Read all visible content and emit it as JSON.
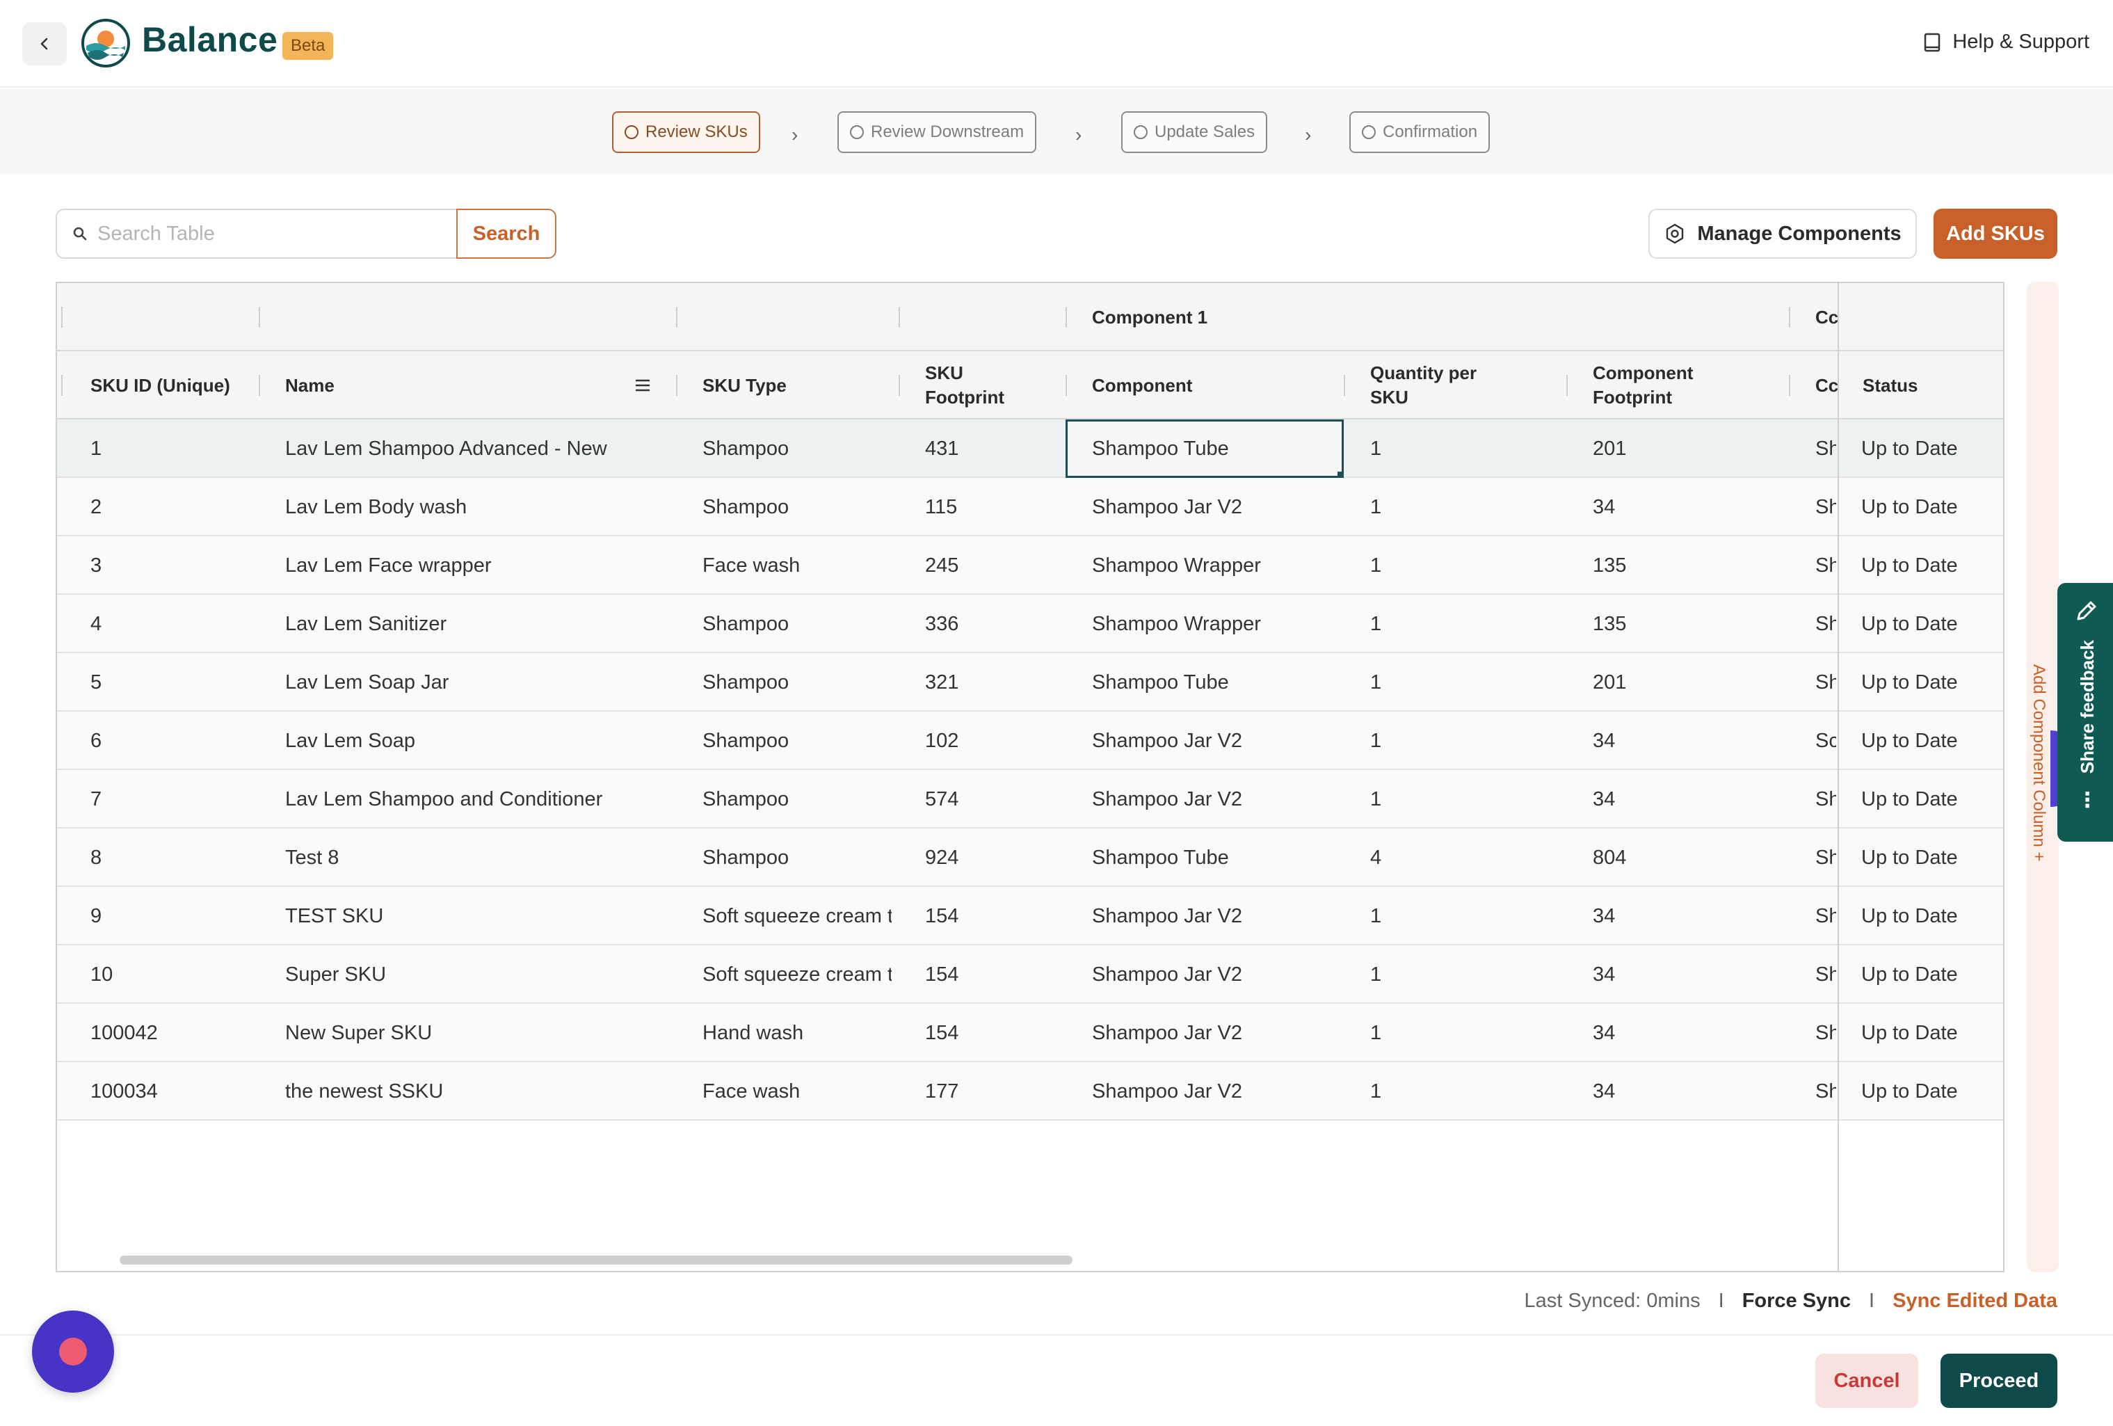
{
  "header": {
    "brand": "Balance",
    "badge": "Beta",
    "help_label": "Help & Support"
  },
  "stepper": {
    "steps": [
      {
        "label": "Review SKUs",
        "active": true
      },
      {
        "label": "Review Downstream",
        "active": false
      },
      {
        "label": "Update Sales",
        "active": false
      },
      {
        "label": "Confirmation",
        "active": false
      }
    ]
  },
  "toolbar": {
    "search_placeholder": "Search Table",
    "search_label": "Search",
    "manage_label": "Manage Components",
    "add_label": "Add SKUs"
  },
  "table": {
    "group_header": "Component 1",
    "group_header_2": "Cc",
    "columns": {
      "sku_id": "SKU ID (Unique)",
      "name": "Name",
      "sku_type": "SKU Type",
      "sku_footprint": "SKU Footprint",
      "component": "Component",
      "qty": "Quantity per SKU",
      "comp_footprint": "Component Footprint",
      "next": "Cc",
      "status": "Status"
    },
    "rows": [
      {
        "id": "1",
        "name": "Lav Lem Shampoo Advanced - New",
        "type": "Shampoo",
        "footprint": "431",
        "component": "Shampoo Tube",
        "qty": "1",
        "comp_fp": "201",
        "next": "Sh",
        "status": "Up to Date"
      },
      {
        "id": "2",
        "name": "Lav Lem Body wash",
        "type": "Shampoo",
        "footprint": "115",
        "component": "Shampoo Jar V2",
        "qty": "1",
        "comp_fp": "34",
        "next": "Sh",
        "status": "Up to Date"
      },
      {
        "id": "3",
        "name": "Lav Lem Face wrapper",
        "type": "Face wash",
        "footprint": "245",
        "component": "Shampoo Wrapper",
        "qty": "1",
        "comp_fp": "135",
        "next": "Sh",
        "status": "Up to Date"
      },
      {
        "id": "4",
        "name": "Lav Lem Sanitizer",
        "type": "Shampoo",
        "footprint": "336",
        "component": "Shampoo Wrapper",
        "qty": "1",
        "comp_fp": "135",
        "next": "Sh",
        "status": "Up to Date"
      },
      {
        "id": "5",
        "name": "Lav Lem Soap Jar",
        "type": "Shampoo",
        "footprint": "321",
        "component": "Shampoo Tube",
        "qty": "1",
        "comp_fp": "201",
        "next": "Sh",
        "status": "Up to Date"
      },
      {
        "id": "6",
        "name": "Lav Lem Soap",
        "type": "Shampoo",
        "footprint": "102",
        "component": "Shampoo Jar V2",
        "qty": "1",
        "comp_fp": "34",
        "next": "Sc",
        "status": "Up to Date"
      },
      {
        "id": "7",
        "name": "Lav Lem Shampoo and Conditioner",
        "type": "Shampoo",
        "footprint": "574",
        "component": "Shampoo Jar V2",
        "qty": "1",
        "comp_fp": "34",
        "next": "Sh",
        "status": "Up to Date"
      },
      {
        "id": "8",
        "name": "Test 8",
        "type": "Shampoo",
        "footprint": "924",
        "component": "Shampoo Tube",
        "qty": "4",
        "comp_fp": "804",
        "next": "Sh",
        "status": "Up to Date"
      },
      {
        "id": "9",
        "name": "TEST SKU",
        "type": "Soft squeeze cream tube",
        "footprint": "154",
        "component": "Shampoo Jar V2",
        "qty": "1",
        "comp_fp": "34",
        "next": "Sh",
        "status": "Up to Date"
      },
      {
        "id": "10",
        "name": "Super SKU",
        "type": "Soft squeeze cream tube",
        "footprint": "154",
        "component": "Shampoo Jar V2",
        "qty": "1",
        "comp_fp": "34",
        "next": "Sh",
        "status": "Up to Date"
      },
      {
        "id": "100042",
        "name": "New Super SKU",
        "type": "Hand wash",
        "footprint": "154",
        "component": "Shampoo Jar V2",
        "qty": "1",
        "comp_fp": "34",
        "next": "Sh",
        "status": "Up to Date"
      },
      {
        "id": "100034",
        "name": "the newest SSKU",
        "type": "Face wash",
        "footprint": "177",
        "component": "Shampoo Jar V2",
        "qty": "1",
        "comp_fp": "34",
        "next": "Sh",
        "status": "Up to Date"
      }
    ]
  },
  "rail": {
    "add_column_label": "Add Component Column +",
    "feedback_label": "Share feedback"
  },
  "footer": {
    "last_synced": "Last Synced: 0mins",
    "sep": "I",
    "force_sync": "Force Sync",
    "sync_edited": "Sync Edited Data",
    "cancel": "Cancel",
    "proceed": "Proceed"
  },
  "colors": {
    "brand_teal": "#0f4a4a",
    "accent_orange": "#c8602a",
    "beta_badge": "#f4b45a",
    "cancel_bg": "#f8e2e0",
    "feedback_green": "#0f5a52"
  }
}
